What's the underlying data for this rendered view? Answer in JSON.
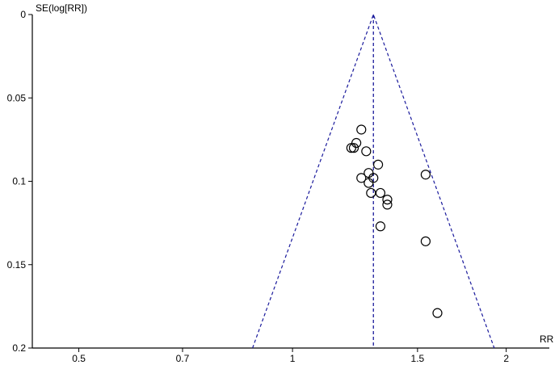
{
  "chart_data": {
    "type": "scatter",
    "title": "",
    "xlabel": "RR",
    "ylabel": "SE(log[RR])",
    "x_scale": "log",
    "xlim": [
      0.43,
      2.3
    ],
    "ylim": [
      0,
      0.2
    ],
    "y_reversed": true,
    "x_ticks": [
      0.5,
      0.7,
      1,
      1.5,
      2
    ],
    "x_tick_labels": [
      "0.5",
      "0.7",
      "1",
      "1.5",
      "2"
    ],
    "y_ticks": [
      0,
      0.05,
      0.1,
      0.15,
      0.2
    ],
    "y_tick_labels": [
      "0",
      "0.05",
      "0.1",
      "0.15",
      "0.2"
    ],
    "pooled_rr": 1.3,
    "funnel_color": "#1a1a9c",
    "points": [
      {
        "rr": 1.25,
        "se": 0.069
      },
      {
        "rr": 1.23,
        "se": 0.077
      },
      {
        "rr": 1.21,
        "se": 0.08
      },
      {
        "rr": 1.22,
        "se": 0.08
      },
      {
        "rr": 1.27,
        "se": 0.082
      },
      {
        "rr": 1.32,
        "se": 0.09
      },
      {
        "rr": 1.28,
        "se": 0.095
      },
      {
        "rr": 1.3,
        "se": 0.098
      },
      {
        "rr": 1.25,
        "se": 0.098
      },
      {
        "rr": 1.28,
        "se": 0.101
      },
      {
        "rr": 1.29,
        "se": 0.107
      },
      {
        "rr": 1.33,
        "se": 0.107
      },
      {
        "rr": 1.36,
        "se": 0.111
      },
      {
        "rr": 1.36,
        "se": 0.114
      },
      {
        "rr": 1.33,
        "se": 0.127
      },
      {
        "rr": 1.54,
        "se": 0.096
      },
      {
        "rr": 1.54,
        "se": 0.136
      },
      {
        "rr": 1.6,
        "se": 0.179
      }
    ]
  }
}
